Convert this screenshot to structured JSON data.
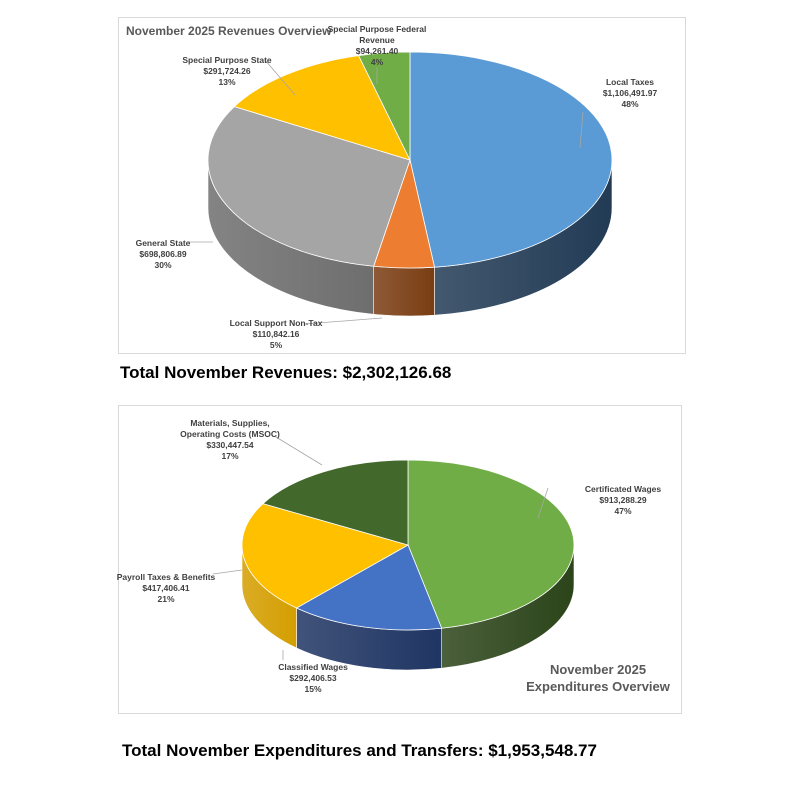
{
  "chart_data": [
    {
      "type": "pie",
      "title": "November 2025 Revenues Overview",
      "categories": [
        "Local Taxes",
        "Local Support Non-Tax",
        "General State",
        "Special Purpose State",
        "Special Purpose Federal Revenue"
      ],
      "values": [
        1106491.97,
        110842.16,
        698806.89,
        291724.26,
        94261.4
      ],
      "value_labels": [
        "$1,106,491.97",
        "$110,842.16",
        "$698,806.89",
        "$291,724.26",
        "$94,261.40"
      ],
      "percent_labels": [
        "48%",
        "5%",
        "30%",
        "13%",
        "4%"
      ],
      "colors": [
        "#5b9bd5",
        "#ed7d31",
        "#a5a5a5",
        "#ffc000",
        "#70ad47"
      ],
      "side_colors": [
        "#223b55",
        "#7a3d12",
        "#6e6e6e",
        "#b38600",
        "#3f6a25"
      ],
      "label_lines": [
        [
          "Local Taxes"
        ],
        [
          "Local Support Non-Tax"
        ],
        [
          "General State"
        ],
        [
          "Special Purpose State"
        ],
        [
          "Special Purpose Federal",
          "Revenue"
        ]
      ]
    },
    {
      "type": "pie",
      "title": "November 2025 Expenditures Overview",
      "title_lines": [
        "November 2025",
        "Expenditures Overview"
      ],
      "categories": [
        "Certificated Wages",
        "Classified Wages",
        "Payroll Taxes & Benefits",
        "Materials, Supplies, Operating Costs (MSOC)"
      ],
      "values": [
        913288.29,
        292406.53,
        417406.41,
        330447.54
      ],
      "value_labels": [
        "$913,288.29",
        "$292,406.53",
        "$417,406.41",
        "$330,447.54"
      ],
      "percent_labels": [
        "47%",
        "15%",
        "21%",
        "17%"
      ],
      "colors": [
        "#70ad47",
        "#4472c4",
        "#ffc000",
        "#43682b"
      ],
      "side_colors": [
        "#2b4419",
        "#1f3563",
        "#d49e00",
        "#2a4219"
      ],
      "label_lines": [
        [
          "Certificated Wages"
        ],
        [
          "Classified Wages"
        ],
        [
          "Payroll Taxes & Benefits"
        ],
        [
          "Materials, Supplies,",
          "Operating Costs (MSOC)"
        ]
      ]
    }
  ],
  "totals": {
    "revenues": "Total November Revenues: $2,302,126.68",
    "expenditures": "Total November Expenditures and Transfers: $1,953,548.77"
  }
}
